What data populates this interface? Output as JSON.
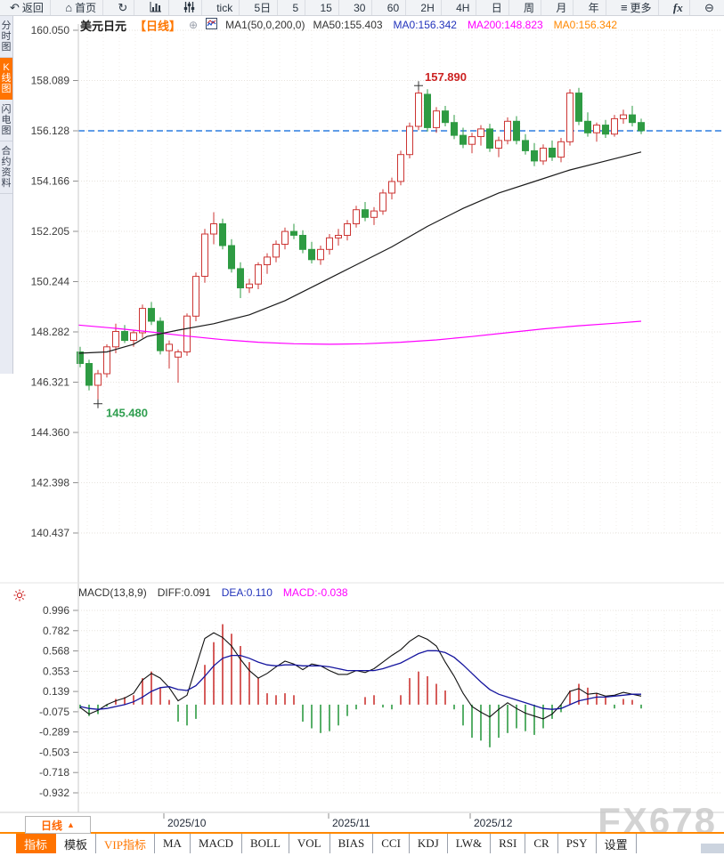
{
  "toolbar": {
    "items": [
      {
        "icon": "back-arrow-icon",
        "label": "返回"
      },
      {
        "icon": "home-icon",
        "label": "首页"
      },
      {
        "icon": "refresh-icon",
        "label": ""
      },
      {
        "icon": "bar-chart-icon",
        "label": ""
      },
      {
        "icon": "candle-settings-icon",
        "label": ""
      },
      {
        "label": "tick"
      },
      {
        "label": "5日"
      },
      {
        "label": "5"
      },
      {
        "label": "15"
      },
      {
        "label": "30"
      },
      {
        "label": "60"
      },
      {
        "label": "2H"
      },
      {
        "label": "4H"
      },
      {
        "label": "日"
      },
      {
        "label": "周"
      },
      {
        "label": "月"
      },
      {
        "label": "年"
      },
      {
        "icon": "menu-icon",
        "label": "更多"
      },
      {
        "label": "fx",
        "style": "fx"
      },
      {
        "icon": "zoom-out-icon",
        "label": ""
      }
    ]
  },
  "sidebar": {
    "tabs": [
      {
        "label": "分时图",
        "active": false
      },
      {
        "label": "K线图",
        "active": true
      },
      {
        "label": "闪电图",
        "active": false
      },
      {
        "label": "合约资料",
        "active": false
      }
    ]
  },
  "chart_header": {
    "symbol": "美元日元",
    "period": "【日线】",
    "icons": {
      "circle_plus": "⊕"
    },
    "formula": "MA1(50,0,200,0)",
    "ma_values": [
      {
        "label": "MA50:155.403",
        "color": "#333333"
      },
      {
        "label": "MA0:156.342",
        "color": "#2233bb"
      },
      {
        "label": "MA200:148.823",
        "color": "#ff00ff"
      },
      {
        "label": "MA0:156.342",
        "color": "#ff8800"
      }
    ]
  },
  "macd_header": {
    "items": [
      {
        "label": "MACD(13,8,9)",
        "color": "#333333"
      },
      {
        "label": "DIFF:0.091",
        "color": "#333333"
      },
      {
        "label": "DEA:0.110",
        "color": "#2233bb"
      },
      {
        "label": "MACD:-0.038",
        "color": "#ff00ff"
      }
    ]
  },
  "chart_data": [
    {
      "type": "candlestick",
      "title": "美元日元 日线",
      "y_axis": {
        "max": 160.05,
        "min": 140.437
      },
      "y_ticks": [
        "160.050",
        "158.089",
        "156.128",
        "154.166",
        "152.205",
        "150.244",
        "148.282",
        "146.321",
        "144.360",
        "142.398",
        "140.437"
      ],
      "up_color": "#cc3533",
      "down_color": "#2e9b43",
      "last_close_line": {
        "value": 156.128,
        "color": "#2b7de0",
        "style": "dashed"
      },
      "candles": {
        "open": [
          147.5,
          147.05,
          146.2,
          146.65,
          147.7,
          148.3,
          147.95,
          148.25,
          149.2,
          148.7,
          147.55,
          147.3,
          147.5,
          148.9,
          150.45,
          152.1,
          152.5,
          151.65,
          150.75,
          150.0,
          150.15,
          150.9,
          151.2,
          151.7,
          152.2,
          152.05,
          151.5,
          151.1,
          151.5,
          151.95,
          152.05,
          152.5,
          153.05,
          152.75,
          153.0,
          153.7,
          154.15,
          155.2,
          156.3,
          157.55,
          156.25,
          156.9,
          156.45,
          155.95,
          155.6,
          155.9,
          156.2,
          155.45,
          155.75,
          156.5,
          155.75,
          155.35,
          154.95,
          155.45,
          155.1,
          155.7,
          157.6,
          156.5,
          156.05,
          156.35,
          156.0,
          156.6,
          156.75,
          156.45
        ],
        "high": [
          147.7,
          147.2,
          146.8,
          147.8,
          148.6,
          148.55,
          148.35,
          149.35,
          149.45,
          148.85,
          147.95,
          147.6,
          149.0,
          150.6,
          152.3,
          152.95,
          152.7,
          151.9,
          151.0,
          150.35,
          151.0,
          151.35,
          151.85,
          152.35,
          152.5,
          152.25,
          151.8,
          151.65,
          152.1,
          152.3,
          152.65,
          153.2,
          153.35,
          153.15,
          153.85,
          154.3,
          155.35,
          156.45,
          157.89,
          157.75,
          157.05,
          157.1,
          156.75,
          156.25,
          156.05,
          156.35,
          156.4,
          155.9,
          156.65,
          156.7,
          156.0,
          155.65,
          155.6,
          155.75,
          155.85,
          157.75,
          157.8,
          156.85,
          156.45,
          156.55,
          156.75,
          156.95,
          157.1,
          156.6
        ],
        "low": [
          146.9,
          146.0,
          145.48,
          146.5,
          147.45,
          147.85,
          147.7,
          148.05,
          148.55,
          147.4,
          146.85,
          146.3,
          147.35,
          148.7,
          150.2,
          151.7,
          151.5,
          150.6,
          149.6,
          149.8,
          149.95,
          150.55,
          151.0,
          151.5,
          151.9,
          151.35,
          150.95,
          150.9,
          151.3,
          151.65,
          151.85,
          152.35,
          152.6,
          152.45,
          152.85,
          153.45,
          154.0,
          155.05,
          156.15,
          156.1,
          156.05,
          156.3,
          155.8,
          155.45,
          155.25,
          155.55,
          155.3,
          155.1,
          155.6,
          155.6,
          155.2,
          154.75,
          154.8,
          154.95,
          154.9,
          155.55,
          156.35,
          155.9,
          155.7,
          155.85,
          155.9,
          156.4,
          156.3,
          156.0
        ],
        "close": [
          147.05,
          146.2,
          146.65,
          147.7,
          148.3,
          147.95,
          148.25,
          149.2,
          148.7,
          147.55,
          147.8,
          147.5,
          148.9,
          150.45,
          152.1,
          152.5,
          151.65,
          150.75,
          150.0,
          150.15,
          150.9,
          151.2,
          151.7,
          152.2,
          152.05,
          151.5,
          151.1,
          151.5,
          151.95,
          152.05,
          152.5,
          153.05,
          152.75,
          153.0,
          153.7,
          154.15,
          155.2,
          156.3,
          157.6,
          156.25,
          156.9,
          156.45,
          155.95,
          155.6,
          155.9,
          156.2,
          155.45,
          155.75,
          156.5,
          155.75,
          155.35,
          154.95,
          155.45,
          155.1,
          155.7,
          157.6,
          156.5,
          156.05,
          156.35,
          156.0,
          156.6,
          156.75,
          156.45,
          156.13
        ]
      },
      "ma50": {
        "color": "#1a1a1a",
        "points": [
          [
            88,
            147.45
          ],
          [
            120,
            147.5
          ],
          [
            150,
            147.8
          ],
          [
            165,
            148.1
          ],
          [
            200,
            148.35
          ],
          [
            240,
            148.6
          ],
          [
            280,
            148.95
          ],
          [
            320,
            149.5
          ],
          [
            360,
            150.2
          ],
          [
            400,
            150.9
          ],
          [
            440,
            151.6
          ],
          [
            480,
            152.4
          ],
          [
            520,
            153.1
          ],
          [
            560,
            153.7
          ],
          [
            600,
            154.15
          ],
          [
            640,
            154.6
          ],
          [
            680,
            154.95
          ],
          [
            720,
            155.3
          ]
        ]
      },
      "ma200": {
        "color": "#ff00ff",
        "points": [
          [
            88,
            148.55
          ],
          [
            130,
            148.42
          ],
          [
            170,
            148.28
          ],
          [
            210,
            148.12
          ],
          [
            250,
            147.98
          ],
          [
            290,
            147.88
          ],
          [
            330,
            147.82
          ],
          [
            370,
            147.8
          ],
          [
            410,
            147.82
          ],
          [
            450,
            147.88
          ],
          [
            490,
            147.97
          ],
          [
            530,
            148.1
          ],
          [
            570,
            148.25
          ],
          [
            610,
            148.4
          ],
          [
            650,
            148.52
          ],
          [
            690,
            148.62
          ],
          [
            720,
            148.7
          ]
        ]
      },
      "annotations": [
        {
          "text": "157.890",
          "index": 38,
          "price": 157.89,
          "color": "#cc2222",
          "placement": "above-right"
        },
        {
          "text": "145.480",
          "index": 2,
          "price": 145.48,
          "color": "#2f9e4f",
          "placement": "below-right"
        }
      ],
      "month_ticks": [
        {
          "label": "2025/10",
          "index": 9.4
        },
        {
          "label": "2025/11",
          "index": 27.9
        },
        {
          "label": "2025/12",
          "index": 43.8
        }
      ]
    },
    {
      "type": "macd",
      "params": "(13,8,9)",
      "y_ticks": [
        "0.996",
        "0.782",
        "0.568",
        "0.353",
        "0.139",
        "-0.075",
        "-0.289",
        "-0.503",
        "-0.718",
        "-0.932"
      ],
      "diff": {
        "color": "#111111",
        "values": [
          -0.03,
          -0.1,
          -0.06,
          0.0,
          0.04,
          0.07,
          0.12,
          0.26,
          0.33,
          0.28,
          0.18,
          0.04,
          0.1,
          0.4,
          0.7,
          0.76,
          0.71,
          0.62,
          0.48,
          0.36,
          0.28,
          0.33,
          0.4,
          0.46,
          0.43,
          0.37,
          0.43,
          0.41,
          0.36,
          0.32,
          0.32,
          0.36,
          0.34,
          0.38,
          0.45,
          0.52,
          0.58,
          0.67,
          0.73,
          0.69,
          0.62,
          0.45,
          0.3,
          0.12,
          -0.02,
          -0.08,
          -0.13,
          -0.05,
          0.02,
          -0.04,
          -0.09,
          -0.12,
          -0.15,
          -0.1,
          0.0,
          0.14,
          0.17,
          0.11,
          0.12,
          0.09,
          0.1,
          0.13,
          0.11,
          0.09
        ]
      },
      "dea": {
        "color": "#15159e",
        "values": [
          -0.02,
          -0.04,
          -0.05,
          -0.04,
          -0.02,
          0.0,
          0.03,
          0.08,
          0.14,
          0.18,
          0.19,
          0.16,
          0.15,
          0.2,
          0.3,
          0.41,
          0.49,
          0.52,
          0.52,
          0.49,
          0.45,
          0.42,
          0.41,
          0.42,
          0.42,
          0.41,
          0.41,
          0.41,
          0.4,
          0.38,
          0.36,
          0.36,
          0.36,
          0.36,
          0.38,
          0.41,
          0.44,
          0.49,
          0.54,
          0.57,
          0.57,
          0.55,
          0.5,
          0.42,
          0.33,
          0.24,
          0.16,
          0.11,
          0.08,
          0.05,
          0.02,
          -0.01,
          -0.04,
          -0.05,
          -0.04,
          0.0,
          0.04,
          0.06,
          0.08,
          0.08,
          0.09,
          0.1,
          0.11,
          0.11
        ]
      },
      "hist": {
        "up_color": "#cc3533",
        "down_color": "#2e9b43",
        "values": [
          -0.04,
          -0.12,
          -0.1,
          -0.02,
          0.06,
          0.08,
          0.1,
          0.28,
          0.35,
          0.18,
          0.05,
          -0.18,
          -0.22,
          -0.15,
          0.42,
          0.66,
          0.85,
          0.75,
          0.62,
          0.45,
          0.28,
          0.12,
          0.1,
          0.12,
          0.1,
          -0.18,
          -0.25,
          -0.3,
          -0.28,
          -0.22,
          -0.12,
          -0.05,
          0.08,
          0.1,
          -0.03,
          -0.05,
          0.1,
          0.28,
          0.35,
          0.3,
          0.22,
          0.15,
          -0.05,
          -0.22,
          -0.35,
          -0.38,
          -0.45,
          -0.35,
          -0.3,
          -0.25,
          -0.28,
          -0.32,
          -0.25,
          -0.15,
          -0.08,
          0.15,
          0.22,
          0.18,
          0.12,
          0.08,
          -0.04,
          0.06,
          0.05,
          -0.04
        ]
      }
    }
  ],
  "bottom": {
    "period_button": {
      "label": "日线",
      "arrow": "▲"
    },
    "watermark": "FX678",
    "tabs": [
      {
        "label": "指标",
        "active": true
      },
      {
        "label": "模板"
      },
      {
        "label": "VIP指标",
        "vip": true
      },
      {
        "label": "MA"
      },
      {
        "label": "MACD"
      },
      {
        "label": "BOLL"
      },
      {
        "label": "VOL"
      },
      {
        "label": "BIAS"
      },
      {
        "label": "CCI"
      },
      {
        "label": "KDJ"
      },
      {
        "label": "LW&"
      },
      {
        "label": "RSI"
      },
      {
        "label": "CR"
      },
      {
        "label": "PSY"
      },
      {
        "label": "设置"
      }
    ]
  }
}
